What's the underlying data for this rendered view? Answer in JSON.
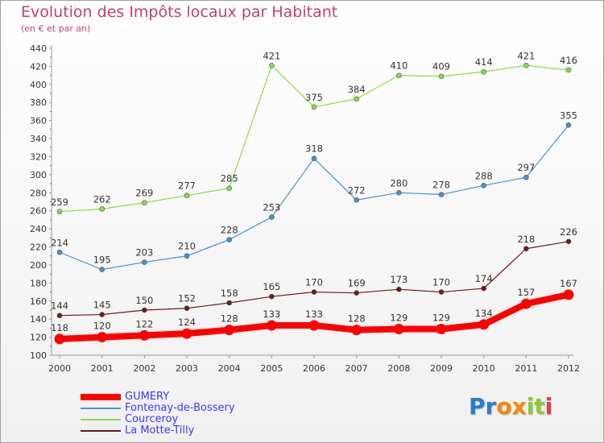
{
  "chart_data": {
    "type": "line",
    "title": "Evolution des Impôts locaux par Habitant",
    "subtitle": "(en € et par an)",
    "x": [
      "2000",
      "2001",
      "2002",
      "2003",
      "2004",
      "2005",
      "2006",
      "2007",
      "2008",
      "2009",
      "2010",
      "2011",
      "2012"
    ],
    "ylim": [
      100,
      440
    ],
    "yticks": [
      100,
      120,
      140,
      160,
      180,
      200,
      220,
      240,
      260,
      280,
      300,
      320,
      340,
      360,
      380,
      400,
      420,
      440
    ],
    "grid": false,
    "legend_position": "bottom-left",
    "series": [
      {
        "name": "GUMERY",
        "color": "#ff0000",
        "values": [
          118,
          120,
          122,
          124,
          128,
          133,
          133,
          128,
          129,
          129,
          134,
          157,
          167
        ]
      },
      {
        "name": "Fontenay-de-Bossery",
        "color": "#4a90d0",
        "values": [
          214,
          195,
          203,
          210,
          228,
          253,
          318,
          272,
          280,
          278,
          288,
          297,
          355
        ]
      },
      {
        "name": "Courceroy",
        "color": "#88dd44",
        "values": [
          259,
          262,
          269,
          277,
          285,
          421,
          375,
          384,
          410,
          409,
          414,
          421,
          416
        ]
      },
      {
        "name": "La Motte-Tilly",
        "color": "#6a1a1a",
        "values": [
          144,
          145,
          150,
          152,
          158,
          165,
          170,
          169,
          173,
          170,
          174,
          218,
          226
        ]
      }
    ]
  },
  "legend_label_color": "#3a3aff",
  "logo": {
    "text": "Proxiti",
    "letters": [
      "P",
      "r",
      "o",
      "x",
      "i",
      "t",
      "i"
    ],
    "colors": [
      "#2a7ad0",
      "#2a7ad0",
      "#f08a10",
      "#f08a10",
      "#8acc30",
      "#8acc30",
      "#e04040"
    ]
  }
}
